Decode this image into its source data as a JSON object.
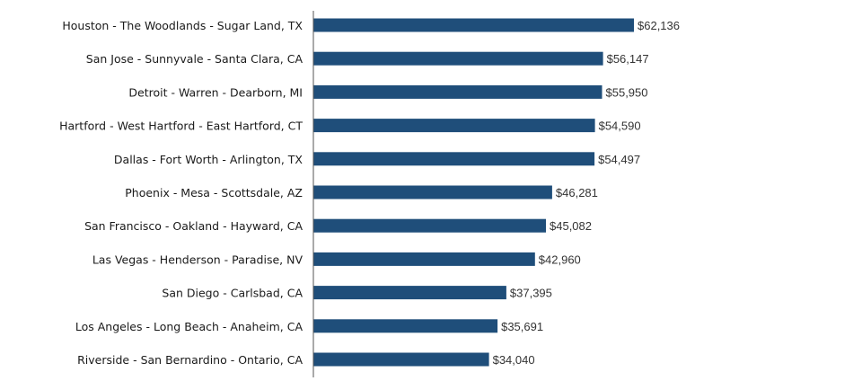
{
  "chart_data": {
    "type": "bar",
    "orientation": "horizontal",
    "title": "",
    "xlabel": "",
    "ylabel": "",
    "xlim": [
      0,
      62136
    ],
    "grid": false,
    "categories": [
      "Houston - The Woodlands - Sugar Land, TX",
      "San Jose - Sunnyvale - Santa Clara, CA",
      "Detroit - Warren - Dearborn, MI",
      "Hartford - West Hartford - East Hartford, CT",
      "Dallas - Fort Worth - Arlington, TX",
      "Phoenix - Mesa - Scottsdale, AZ",
      "San Francisco - Oakland - Hayward, CA",
      "Las Vegas - Henderson - Paradise, NV",
      "San Diego - Carlsbad, CA",
      "Los Angeles - Long Beach - Anaheim, CA",
      "Riverside - San Bernardino - Ontario, CA"
    ],
    "values": [
      62136,
      56147,
      55950,
      54590,
      54497,
      46281,
      45082,
      42960,
      37395,
      35691,
      34040
    ],
    "value_labels": [
      "$62,136",
      "$56,147",
      "$55,950",
      "$54,590",
      "$54,497",
      "$46,281",
      "$45,082",
      "$42,960",
      "$37,395",
      "$35,691",
      "$34,040"
    ],
    "bar_color": "#1f4e7a",
    "axis_color": "#555555"
  }
}
